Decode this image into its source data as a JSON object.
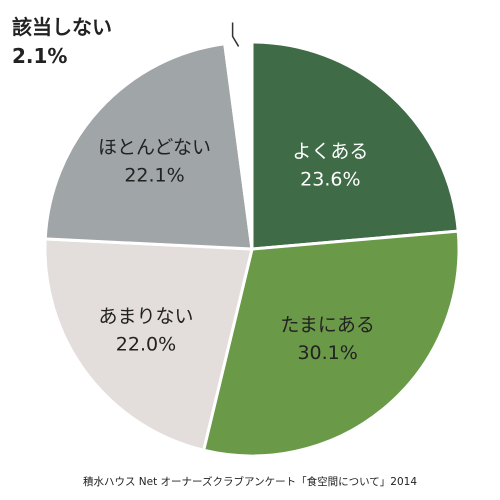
{
  "chart_data": {
    "type": "pie",
    "slices": [
      {
        "label": "よくある",
        "value": 23.6,
        "display": "23.6%",
        "color": "#3f6b47",
        "text_color": "#ffffff"
      },
      {
        "label": "たまにある",
        "value": 30.1,
        "display": "30.1%",
        "color": "#6a9a48",
        "text_color": "#222222"
      },
      {
        "label": "あまりない",
        "value": 22.0,
        "display": "22.0%",
        "color": "#e3dedb",
        "text_color": "#222222"
      },
      {
        "label": "ほとんどない",
        "value": 22.1,
        "display": "22.1%",
        "color": "#a0a5a7",
        "text_color": "#222222"
      },
      {
        "label": "該当しない",
        "value": 2.1,
        "display": "2.1%",
        "color": "#ffffff",
        "text_color": "#222222"
      }
    ],
    "start": "12 o'clock",
    "direction": "clockwise",
    "legend": "none"
  },
  "source": "積水ハウス Net オーナーズクラブアンケート「食空間について」2014"
}
